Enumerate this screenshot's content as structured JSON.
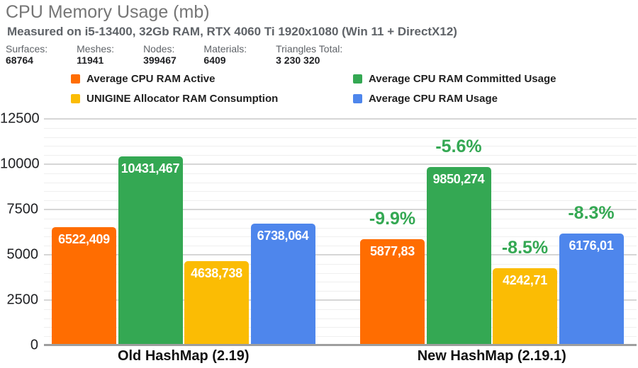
{
  "header": {
    "title": "CPU Memory Usage (mb)",
    "subtitle": "Measured on i5-13400, 32Gb RAM, RTX 4060 Ti 1920x1080 (Win 11 + DirectX12)",
    "stats": [
      {
        "label": "Surfaces:",
        "value": "68764"
      },
      {
        "label": "Meshes:",
        "value": "11941"
      },
      {
        "label": "Nodes:",
        "value": "399467"
      },
      {
        "label": "Materials:",
        "value": "6409"
      },
      {
        "label": "Triangles Total:",
        "value": "3 230 320"
      }
    ]
  },
  "legend": {
    "columns": [
      [
        {
          "label": "Average CPU RAM Active",
          "color": "#ff6d01"
        },
        {
          "label": "UNIGINE Allocator RAM Consumption",
          "color": "#fbbc04"
        }
      ],
      [
        {
          "label": "Average CPU RAM Committed Usage",
          "color": "#34a853"
        },
        {
          "label": "Average CPU RAM Usage",
          "color": "#4e86ec"
        }
      ]
    ]
  },
  "chart_data": {
    "type": "bar",
    "title": "CPU Memory Usage (mb)",
    "xlabel": "",
    "ylabel": "",
    "categories": [
      "Old HashMap (2.19)",
      "New HashMap (2.19.1)"
    ],
    "series": [
      {
        "name": "Average CPU RAM Active",
        "color": "#ff6d01",
        "values": [
          6522.409,
          5877.83
        ],
        "labels": [
          "6522,409",
          "5877,83"
        ],
        "pct_change": [
          null,
          "-9.9%"
        ]
      },
      {
        "name": "Average CPU RAM Committed Usage",
        "color": "#34a853",
        "values": [
          10431.467,
          9850.274
        ],
        "labels": [
          "10431,467",
          "9850,274"
        ],
        "pct_change": [
          null,
          "-5.6%"
        ]
      },
      {
        "name": "UNIGINE Allocator RAM Consumption",
        "color": "#fbbc04",
        "values": [
          4638.738,
          4242.71
        ],
        "labels": [
          "4638,738",
          "4242,71"
        ],
        "pct_change": [
          null,
          "-8.5%"
        ]
      },
      {
        "name": "Average CPU RAM Usage",
        "color": "#4e86ec",
        "values": [
          6738.064,
          6176.01
        ],
        "labels": [
          "6738,064",
          "6176,01"
        ],
        "pct_change": [
          null,
          "-8.3%"
        ]
      }
    ],
    "ylim": [
      0,
      12500
    ],
    "y_ticks": [
      0,
      2500,
      5000,
      7500,
      10000,
      12500
    ],
    "y_minor_step": 500,
    "grid": true,
    "legend_position": "top",
    "pct_change_color": "#34a853",
    "value_label_color": "#ffffff"
  }
}
